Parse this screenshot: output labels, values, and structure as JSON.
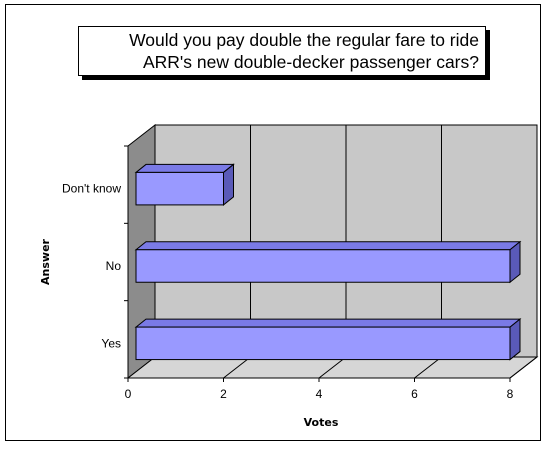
{
  "chart_data": {
    "type": "bar",
    "orientation": "horizontal",
    "title_lines": [
      "Would you pay double the regular fare to ride",
      "ARR's new double-decker passenger cars?"
    ],
    "categories": [
      "Don't know",
      "No",
      "Yes"
    ],
    "values": [
      2,
      8,
      8
    ],
    "xlabel": "Votes",
    "ylabel": "Answer",
    "xlim": [
      0,
      8
    ],
    "xticks": [
      0,
      2,
      4,
      6,
      8
    ],
    "grid": true,
    "style": "3d",
    "colors": {
      "bar_front": "#9999ff",
      "bar_top": "#7a7ae6",
      "bar_side": "#5a5ab8",
      "wall": "#c8c8c8",
      "floor": "#d6d6d6",
      "side_wall": "#8c8c8c"
    }
  }
}
